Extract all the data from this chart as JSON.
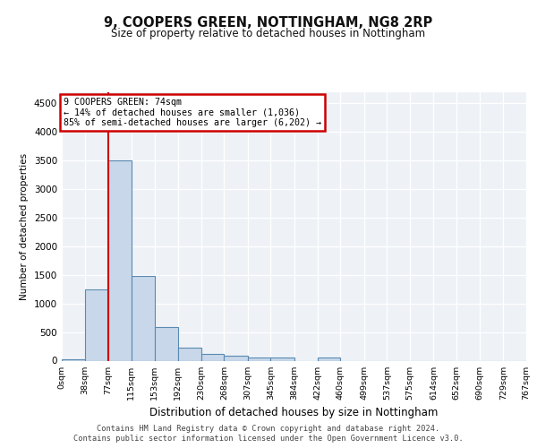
{
  "title_line1": "9, COOPERS GREEN, NOTTINGHAM, NG8 2RP",
  "title_line2": "Size of property relative to detached houses in Nottingham",
  "xlabel": "Distribution of detached houses by size in Nottingham",
  "ylabel": "Number of detached properties",
  "footer_line1": "Contains HM Land Registry data © Crown copyright and database right 2024.",
  "footer_line2": "Contains public sector information licensed under the Open Government Licence v3.0.",
  "bin_labels": [
    "0sqm",
    "38sqm",
    "77sqm",
    "115sqm",
    "153sqm",
    "192sqm",
    "230sqm",
    "268sqm",
    "307sqm",
    "345sqm",
    "384sqm",
    "422sqm",
    "460sqm",
    "499sqm",
    "537sqm",
    "575sqm",
    "614sqm",
    "652sqm",
    "690sqm",
    "729sqm",
    "767sqm"
  ],
  "bar_values": [
    30,
    1250,
    3500,
    1480,
    580,
    220,
    110,
    80,
    55,
    50,
    0,
    55,
    0,
    0,
    0,
    0,
    0,
    0,
    0,
    0
  ],
  "bar_color": "#c8d8ea",
  "bar_edge_color": "#5a8ab0",
  "property_line_color": "#cc0000",
  "annotation_title": "9 COOPERS GREEN: 74sqm",
  "annotation_line1": "← 14% of detached houses are smaller (1,036)",
  "annotation_line2": "85% of semi-detached houses are larger (6,202) →",
  "annotation_box_color": "#cc0000",
  "ylim": [
    0,
    4700
  ],
  "bin_edges": [
    0,
    38,
    77,
    115,
    153,
    192,
    230,
    268,
    307,
    345,
    384,
    422,
    460,
    499,
    537,
    575,
    614,
    652,
    690,
    729,
    767
  ],
  "background_color": "#eef2f7",
  "grid_color": "#ffffff",
  "yticks": [
    0,
    500,
    1000,
    1500,
    2000,
    2500,
    3000,
    3500,
    4000,
    4500
  ]
}
